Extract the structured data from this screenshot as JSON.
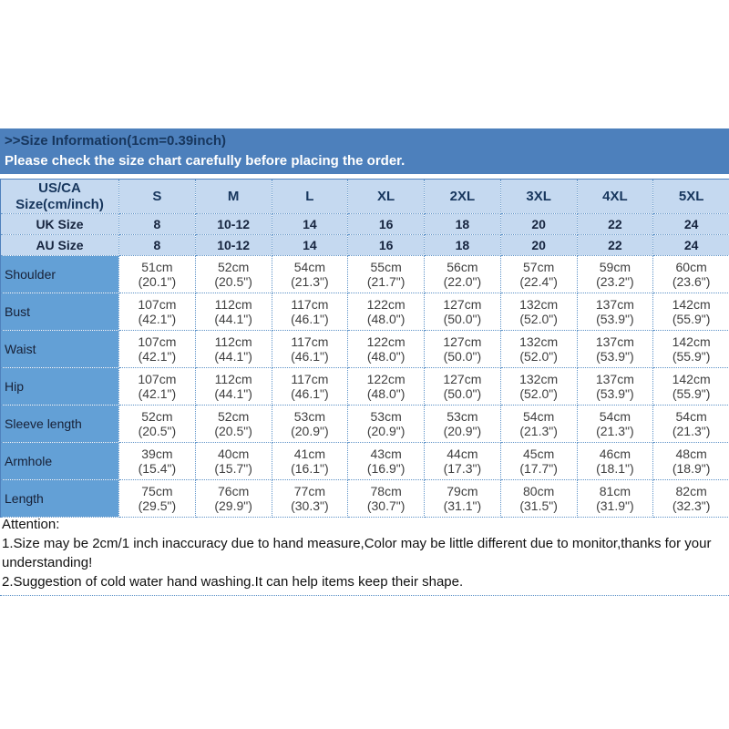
{
  "banner": {
    "title": ">>Size Information(1cm=0.39inch)",
    "subtitle": "Please check the size chart carefully before placing the order."
  },
  "colors": {
    "banner_bg": "#4d80bc",
    "banner_title": "#17365d",
    "banner_subtitle": "#ffffff",
    "header_bg": "#c5d9f0",
    "label_col_bg": "#63a0d6",
    "border_color": "#5e93c8",
    "outer_border": "#4f81bd",
    "header_text": "#17365d",
    "cell_text": "#3f3f3f",
    "label_text": "#172036",
    "note_text": "#111111"
  },
  "size_chart": {
    "corner": {
      "line1": "US/CA",
      "line2": "Size(cm/inch)"
    },
    "size_columns": [
      "S",
      "M",
      "L",
      "XL",
      "2XL",
      "3XL",
      "4XL",
      "5XL"
    ],
    "conversion_rows": [
      {
        "label": "UK Size",
        "values": [
          "8",
          "10-12",
          "14",
          "16",
          "18",
          "20",
          "22",
          "24"
        ]
      },
      {
        "label": "AU Size",
        "values": [
          "8",
          "10-12",
          "14",
          "16",
          "18",
          "20",
          "22",
          "24"
        ]
      }
    ],
    "measurement_rows": [
      {
        "label": "Shoulder",
        "values": [
          [
            "51cm",
            "(20.1\")"
          ],
          [
            "52cm",
            "(20.5\")"
          ],
          [
            "54cm",
            "(21.3\")"
          ],
          [
            "55cm",
            "(21.7\")"
          ],
          [
            "56cm",
            "(22.0\")"
          ],
          [
            "57cm",
            "(22.4\")"
          ],
          [
            "59cm",
            "(23.2\")"
          ],
          [
            "60cm",
            "(23.6\")"
          ]
        ]
      },
      {
        "label": "Bust",
        "values": [
          [
            "107cm",
            "(42.1\")"
          ],
          [
            "112cm",
            "(44.1\")"
          ],
          [
            "117cm",
            "(46.1\")"
          ],
          [
            "122cm",
            "(48.0\")"
          ],
          [
            "127cm",
            "(50.0\")"
          ],
          [
            "132cm",
            "(52.0\")"
          ],
          [
            "137cm",
            "(53.9\")"
          ],
          [
            "142cm",
            "(55.9\")"
          ]
        ]
      },
      {
        "label": "Waist",
        "values": [
          [
            "107cm",
            "(42.1\")"
          ],
          [
            "112cm",
            "(44.1\")"
          ],
          [
            "117cm",
            "(46.1\")"
          ],
          [
            "122cm",
            "(48.0\")"
          ],
          [
            "127cm",
            "(50.0\")"
          ],
          [
            "132cm",
            "(52.0\")"
          ],
          [
            "137cm",
            "(53.9\")"
          ],
          [
            "142cm",
            "(55.9\")"
          ]
        ]
      },
      {
        "label": "Hip",
        "values": [
          [
            "107cm",
            "(42.1\")"
          ],
          [
            "112cm",
            "(44.1\")"
          ],
          [
            "117cm",
            "(46.1\")"
          ],
          [
            "122cm",
            "(48.0\")"
          ],
          [
            "127cm",
            "(50.0\")"
          ],
          [
            "132cm",
            "(52.0\")"
          ],
          [
            "137cm",
            "(53.9\")"
          ],
          [
            "142cm",
            "(55.9\")"
          ]
        ]
      },
      {
        "label": "Sleeve length",
        "values": [
          [
            "52cm",
            "(20.5\")"
          ],
          [
            "52cm",
            "(20.5\")"
          ],
          [
            "53cm",
            "(20.9\")"
          ],
          [
            "53cm",
            "(20.9\")"
          ],
          [
            "53cm",
            "(20.9\")"
          ],
          [
            "54cm",
            "(21.3\")"
          ],
          [
            "54cm",
            "(21.3\")"
          ],
          [
            "54cm",
            "(21.3\")"
          ]
        ]
      },
      {
        "label": "Armhole",
        "values": [
          [
            "39cm",
            "(15.4\")"
          ],
          [
            "40cm",
            "(15.7\")"
          ],
          [
            "41cm",
            "(16.1\")"
          ],
          [
            "43cm",
            "(16.9\")"
          ],
          [
            "44cm",
            "(17.3\")"
          ],
          [
            "45cm",
            "(17.7\")"
          ],
          [
            "46cm",
            "(18.1\")"
          ],
          [
            "48cm",
            "(18.9\")"
          ]
        ]
      },
      {
        "label": "Length",
        "values": [
          [
            "75cm",
            "(29.5\")"
          ],
          [
            "76cm",
            "(29.9\")"
          ],
          [
            "77cm",
            "(30.3\")"
          ],
          [
            "78cm",
            "(30.7\")"
          ],
          [
            "79cm",
            "(31.1\")"
          ],
          [
            "80cm",
            "(31.5\")"
          ],
          [
            "81cm",
            "(31.9\")"
          ],
          [
            "82cm",
            "(32.3\")"
          ]
        ]
      }
    ]
  },
  "attention": {
    "lines": [
      "Attention:",
      "1.Size may be 2cm/1 inch inaccuracy due to hand measure,Color may be little different due to monitor,thanks for your",
      "understanding!",
      "2.Suggestion of cold water hand washing.It can help items keep their shape."
    ]
  }
}
